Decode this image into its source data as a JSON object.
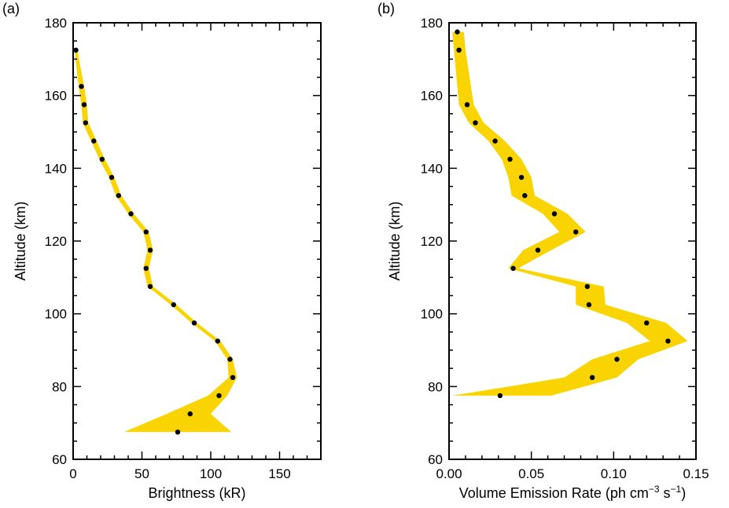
{
  "colors": {
    "band": "#F9D400",
    "point": "#000000",
    "axis": "#000000"
  },
  "chart_data": [
    {
      "type": "scatter",
      "panel_label": "(a)",
      "xlabel": "Brightness (kR)",
      "ylabel": "Altitude (km)",
      "xlim": [
        0,
        180
      ],
      "ylim": [
        60,
        180
      ],
      "xticks": [
        0,
        50,
        100,
        150
      ],
      "xtick_labels": [
        "0",
        "50",
        "100",
        "150"
      ],
      "yticks": [
        60,
        80,
        100,
        120,
        140,
        160,
        180
      ],
      "ytick_labels": [
        "60",
        "80",
        "100",
        "120",
        "140",
        "160",
        "180"
      ],
      "grid": false,
      "series": [
        {
          "x": [
            76,
            85,
            106,
            116,
            114,
            105,
            88,
            73,
            56,
            53,
            56,
            53,
            42,
            33,
            28,
            21,
            15,
            9,
            8,
            6,
            2
          ],
          "y": [
            67.5,
            72.5,
            77.5,
            82.5,
            87.5,
            92.5,
            97.5,
            102.5,
            107.5,
            112.5,
            117.5,
            122.5,
            127.5,
            132.5,
            137.5,
            142.5,
            147.5,
            152.5,
            157.5,
            162.5,
            172.5
          ],
          "band": {
            "y": [
              67.5,
              72.5,
              77.5,
              82.5,
              87.5,
              92.5,
              97.5,
              102.5,
              107.5,
              112.5,
              117.5,
              122.5,
              127.5,
              132.5,
              137.5,
              142.5,
              147.5,
              152.5,
              157.5,
              162.5,
              172.5
            ],
            "lower": [
              37,
              68,
              98,
              113,
              112,
              103,
              86,
              71,
              54,
              51,
              54,
              51,
              40,
              31,
              26,
              19,
              13,
              7,
              6,
              4,
              1
            ],
            "upper": [
              115,
              100,
              112,
              119,
              116,
              107,
              90,
              75,
              58,
              55,
              58,
              55,
              44,
              35,
              30,
              23,
              17,
              11,
              10,
              8,
              3
            ]
          }
        }
      ]
    },
    {
      "type": "scatter",
      "panel_label": "(b)",
      "xlabel": "Volume Emission Rate (ph cm",
      "xlabel_sup1": "−3",
      "xlabel_mid": " s",
      "xlabel_sup2": "−1",
      "xlabel_end": ")",
      "ylabel": "Altitude (km)",
      "xlim": [
        0,
        0.15
      ],
      "ylim": [
        60,
        180
      ],
      "xticks": [
        0,
        0.05,
        0.1,
        0.15
      ],
      "xtick_labels": [
        "0.00",
        "0.05",
        "0.10",
        "0.15"
      ],
      "yticks": [
        60,
        80,
        100,
        120,
        140,
        160,
        180
      ],
      "ytick_labels": [
        "60",
        "80",
        "100",
        "120",
        "140",
        "160",
        "180"
      ],
      "grid": false,
      "series": [
        {
          "x": [
            0.031,
            0.087,
            0.102,
            0.133,
            0.12,
            0.085,
            0.084,
            0.039,
            0.054,
            0.077,
            0.064,
            0.046,
            0.044,
            0.037,
            0.028,
            0.016,
            0.011,
            0.006,
            0.005
          ],
          "y": [
            77.5,
            82.5,
            87.5,
            92.5,
            97.5,
            102.5,
            107.5,
            112.5,
            117.5,
            122.5,
            127.5,
            132.5,
            137.5,
            142.5,
            147.5,
            152.5,
            157.5,
            172.5,
            177.5
          ],
          "band": {
            "y": [
              77.5,
              82.5,
              87.5,
              92.5,
              97.5,
              102.5,
              107.5,
              112.5,
              117.5,
              122.5,
              127.5,
              132.5,
              137.5,
              142.5,
              147.5,
              152.5,
              157.5,
              172.5,
              177.5
            ],
            "lower": [
              0.002,
              0.07,
              0.087,
              0.122,
              0.108,
              0.077,
              0.077,
              0.036,
              0.045,
              0.067,
              0.057,
              0.038,
              0.036,
              0.032,
              0.024,
              0.012,
              0.006,
              0.003,
              0.002
            ],
            "upper": [
              0.062,
              0.102,
              0.115,
              0.145,
              0.132,
              0.095,
              0.094,
              0.042,
              0.062,
              0.083,
              0.072,
              0.052,
              0.05,
              0.044,
              0.034,
              0.021,
              0.015,
              0.01,
              0.009
            ]
          }
        }
      ]
    }
  ]
}
